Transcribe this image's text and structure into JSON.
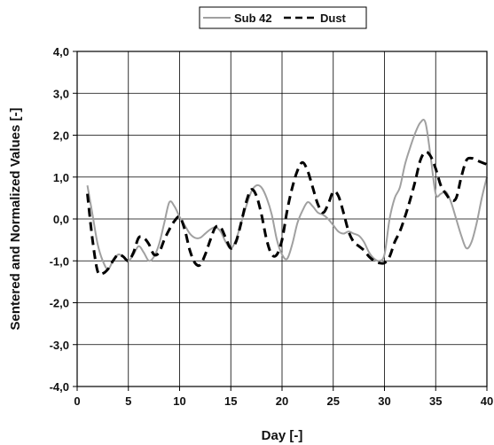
{
  "chart_data": {
    "type": "line",
    "title": "",
    "xlabel": "Day [-]",
    "ylabel": "Sentered and Normalized Values [-]",
    "xlim": [
      0,
      40
    ],
    "ylim": [
      -4,
      4
    ],
    "x_ticks": [
      0,
      5,
      10,
      15,
      20,
      25,
      30,
      35,
      40
    ],
    "x_tick_labels": [
      "0",
      "5",
      "10",
      "15",
      "20",
      "25",
      "30",
      "35",
      "40"
    ],
    "y_ticks": [
      4,
      3,
      2,
      1,
      0,
      -1,
      -2,
      -3,
      -4
    ],
    "y_tick_labels": [
      "4,0",
      "3,0",
      "2,0",
      "1,0",
      "0,0",
      "-1,0",
      "-2,0",
      "-3,0",
      "-4,0"
    ],
    "grid": true,
    "legend_position": "top",
    "series": [
      {
        "name": "Sub 42",
        "color": "#a0a0a0",
        "style": "solid",
        "x": [
          1,
          1.5,
          2,
          2.5,
          3,
          3.5,
          4,
          4.5,
          5,
          5.5,
          6,
          6.5,
          7,
          7.5,
          8,
          8.5,
          9,
          9.5,
          10,
          10.5,
          11,
          11.5,
          12,
          12.5,
          13,
          13.5,
          14,
          14.5,
          15,
          15.5,
          16,
          16.5,
          17,
          17.5,
          18,
          18.5,
          19,
          19.5,
          20,
          20.5,
          21,
          21.5,
          22,
          22.5,
          23,
          23.5,
          24,
          24.5,
          25,
          25.5,
          26,
          26.5,
          27,
          27.5,
          28,
          28.5,
          29,
          29.5,
          30,
          30.5,
          31,
          31.5,
          32,
          32.5,
          33,
          33.5,
          34,
          34.5,
          35,
          35.5,
          36,
          36.5,
          37,
          37.5,
          38,
          38.5,
          39,
          39.5,
          40
        ],
        "values": [
          0.8,
          0.1,
          -0.6,
          -1.0,
          -1.2,
          -1.0,
          -0.85,
          -0.9,
          -1.0,
          -0.85,
          -0.65,
          -0.8,
          -1.0,
          -0.9,
          -0.6,
          -0.1,
          0.4,
          0.3,
          0.05,
          -0.15,
          -0.35,
          -0.45,
          -0.45,
          -0.35,
          -0.25,
          -0.2,
          -0.3,
          -0.55,
          -0.7,
          -0.5,
          -0.1,
          0.3,
          0.65,
          0.8,
          0.75,
          0.5,
          0.1,
          -0.5,
          -0.85,
          -0.95,
          -0.6,
          -0.1,
          0.2,
          0.4,
          0.3,
          0.15,
          0.1,
          0.0,
          -0.15,
          -0.3,
          -0.35,
          -0.3,
          -0.35,
          -0.4,
          -0.55,
          -0.8,
          -0.95,
          -1.0,
          -0.85,
          0.0,
          0.5,
          0.75,
          1.3,
          1.7,
          2.05,
          2.3,
          2.3,
          1.5,
          0.6,
          0.6,
          0.65,
          0.4,
          0.0,
          -0.4,
          -0.7,
          -0.55,
          -0.1,
          0.5,
          1.0
        ]
      },
      {
        "name": "Dust",
        "color": "#000000",
        "style": "dashed",
        "x": [
          1,
          1.5,
          2,
          2.5,
          3,
          3.5,
          4,
          4.5,
          5,
          5.5,
          6,
          6.5,
          7,
          7.5,
          8,
          8.5,
          9,
          9.5,
          10,
          10.5,
          11,
          11.5,
          12,
          12.5,
          13,
          13.5,
          14,
          14.5,
          15,
          15.5,
          16,
          16.5,
          17,
          17.5,
          18,
          18.5,
          19,
          19.5,
          20,
          20.5,
          21,
          21.5,
          22,
          22.5,
          23,
          23.5,
          24,
          24.5,
          25,
          25.5,
          26,
          26.5,
          27,
          27.5,
          28,
          28.5,
          29,
          29.5,
          30,
          30.5,
          31,
          31.5,
          32,
          32.5,
          33,
          33.5,
          34,
          34.5,
          35,
          35.5,
          36,
          36.5,
          37,
          37.5,
          38,
          38.5,
          39,
          39.5,
          40
        ],
        "values": [
          0.6,
          -0.5,
          -1.25,
          -1.3,
          -1.2,
          -1.0,
          -0.85,
          -0.9,
          -1.0,
          -0.8,
          -0.45,
          -0.45,
          -0.6,
          -0.85,
          -0.8,
          -0.5,
          -0.25,
          -0.05,
          0.05,
          -0.25,
          -0.75,
          -1.05,
          -1.1,
          -0.85,
          -0.5,
          -0.2,
          -0.2,
          -0.45,
          -0.7,
          -0.55,
          -0.1,
          0.4,
          0.7,
          0.55,
          0.1,
          -0.5,
          -0.85,
          -0.85,
          -0.5,
          0.2,
          0.75,
          1.15,
          1.35,
          1.15,
          0.75,
          0.35,
          0.15,
          0.35,
          0.65,
          0.55,
          0.15,
          -0.3,
          -0.55,
          -0.65,
          -0.75,
          -0.9,
          -1.0,
          -1.05,
          -1.05,
          -0.9,
          -0.55,
          -0.3,
          0.05,
          0.45,
          0.9,
          1.4,
          1.6,
          1.5,
          1.2,
          0.8,
          0.6,
          0.45,
          0.5,
          1.0,
          1.4,
          1.45,
          1.4,
          1.35,
          1.3
        ]
      }
    ]
  }
}
